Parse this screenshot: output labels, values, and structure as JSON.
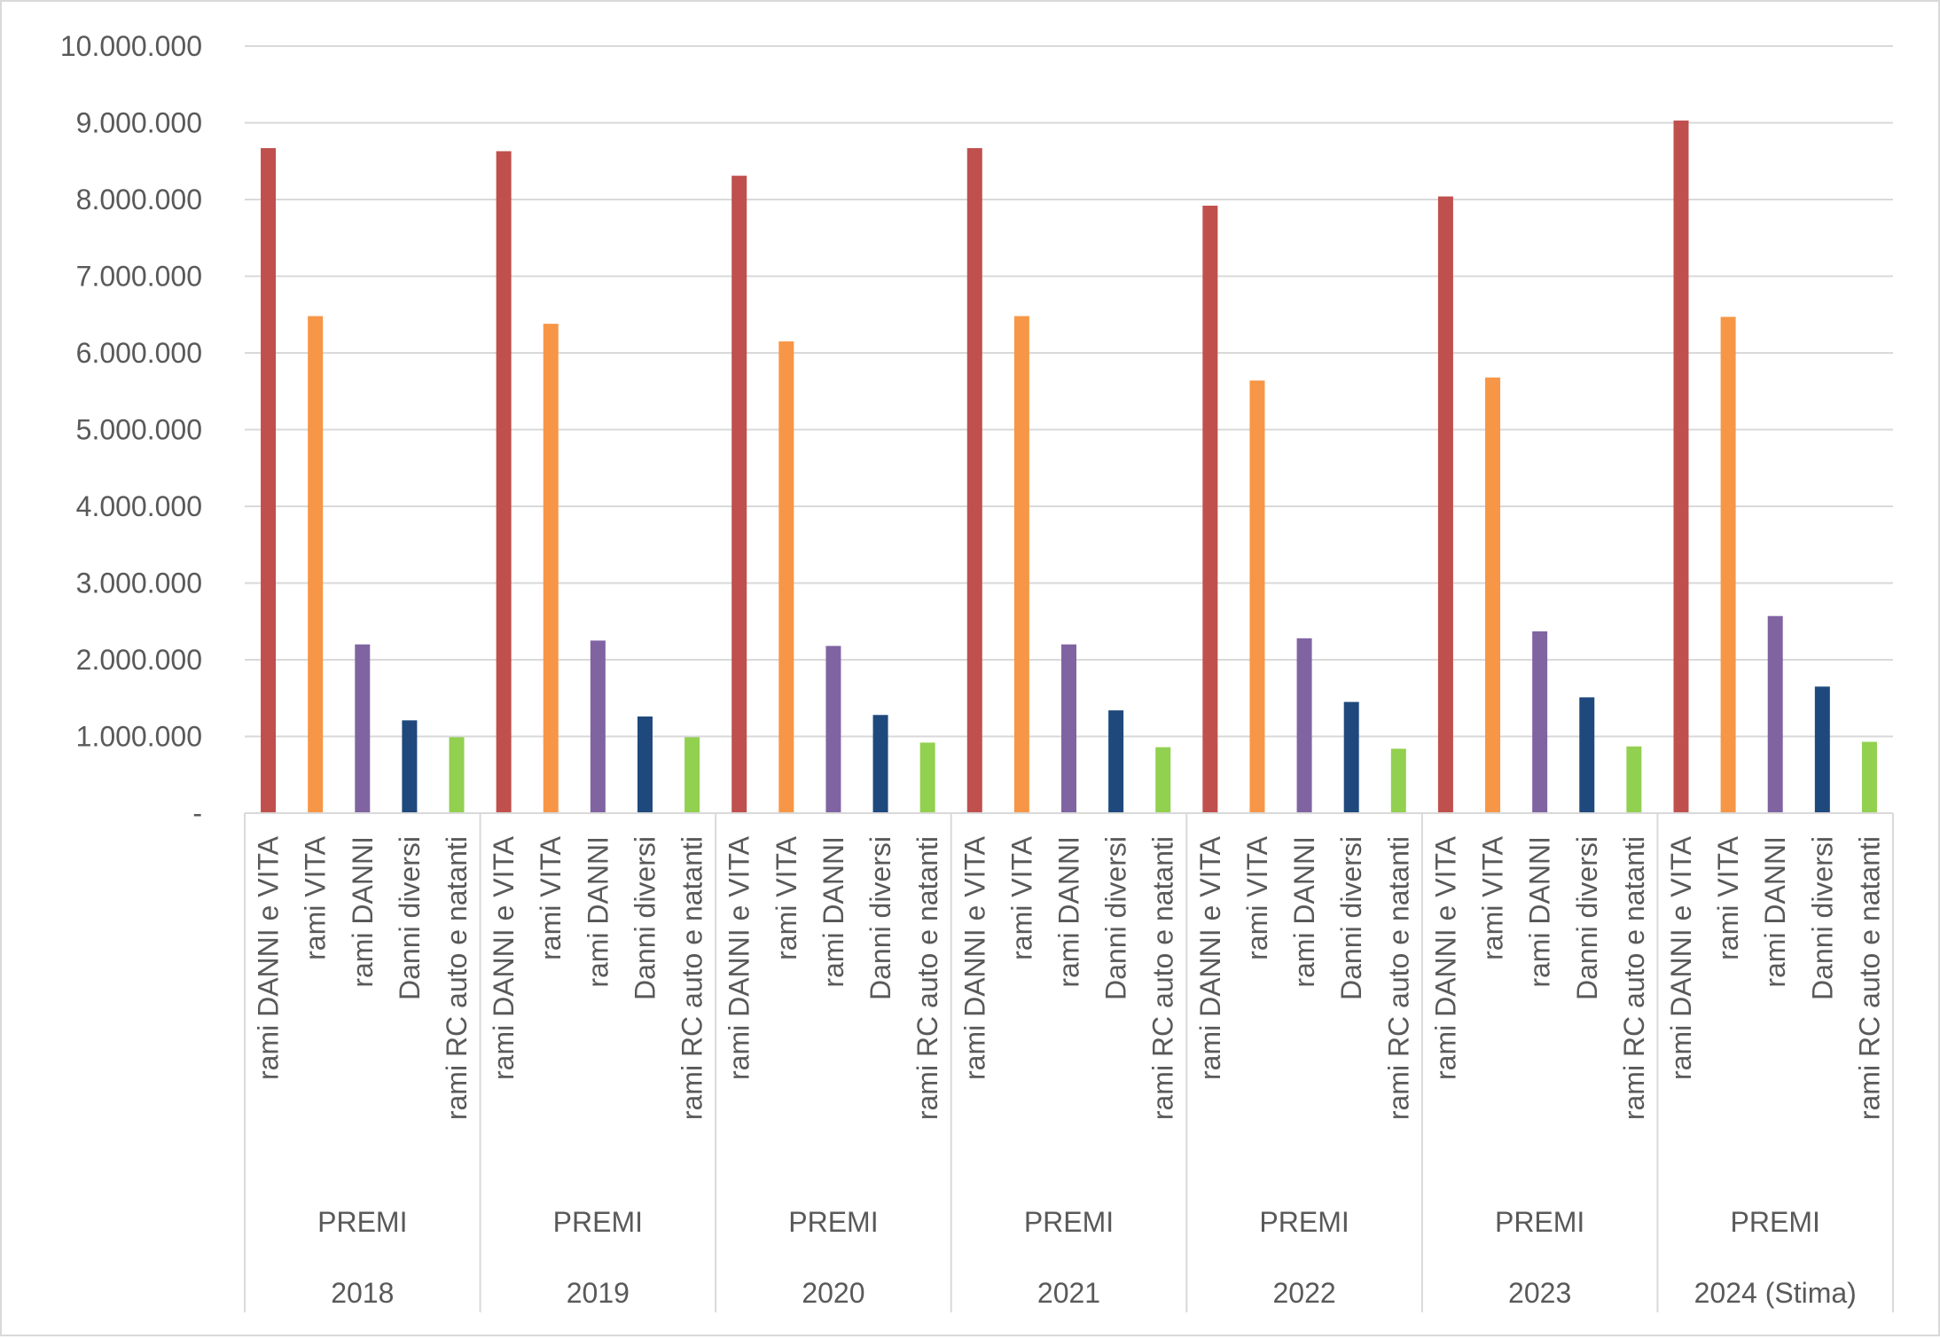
{
  "chart_data": {
    "type": "bar",
    "title": "",
    "xlabel": "",
    "ylabel": "",
    "ylim": [
      0,
      10000000
    ],
    "y_ticks": [
      {
        "value": 0,
        "label": "-"
      },
      {
        "value": 1000000,
        "label": "1.000.000"
      },
      {
        "value": 2000000,
        "label": "2.000.000"
      },
      {
        "value": 3000000,
        "label": "3.000.000"
      },
      {
        "value": 4000000,
        "label": "4.000.000"
      },
      {
        "value": 5000000,
        "label": "5.000.000"
      },
      {
        "value": 6000000,
        "label": "6.000.000"
      },
      {
        "value": 7000000,
        "label": "7.000.000"
      },
      {
        "value": 8000000,
        "label": "8.000.000"
      },
      {
        "value": 9000000,
        "label": "9.000.000"
      },
      {
        "value": 10000000,
        "label": "10.000.000"
      }
    ],
    "grid": true,
    "legend": "none",
    "category_levels": {
      "bars": [
        "rami DANNI e VITA",
        "rami VITA",
        "rami DANNI",
        "Danni diversi",
        "rami RC auto e natanti"
      ],
      "group_label": "PREMI"
    },
    "bar_colors": [
      "#c0504d",
      "#f79646",
      "#8064a2",
      "#1f497d",
      "#92d050"
    ],
    "groups": [
      {
        "year": "2018",
        "values": [
          8670000,
          6480000,
          2200000,
          1210000,
          990000
        ]
      },
      {
        "year": "2019",
        "values": [
          8630000,
          6380000,
          2250000,
          1260000,
          990000
        ]
      },
      {
        "year": "2020",
        "values": [
          8310000,
          6150000,
          2180000,
          1280000,
          920000
        ]
      },
      {
        "year": "2021",
        "values": [
          8670000,
          6480000,
          2200000,
          1340000,
          860000
        ]
      },
      {
        "year": "2022",
        "values": [
          7920000,
          5640000,
          2280000,
          1450000,
          840000
        ]
      },
      {
        "year": "2023",
        "values": [
          8040000,
          5680000,
          2370000,
          1510000,
          870000
        ]
      },
      {
        "year": "2024 (Stima)",
        "values": [
          9030000,
          6470000,
          2570000,
          1650000,
          930000
        ]
      }
    ]
  }
}
